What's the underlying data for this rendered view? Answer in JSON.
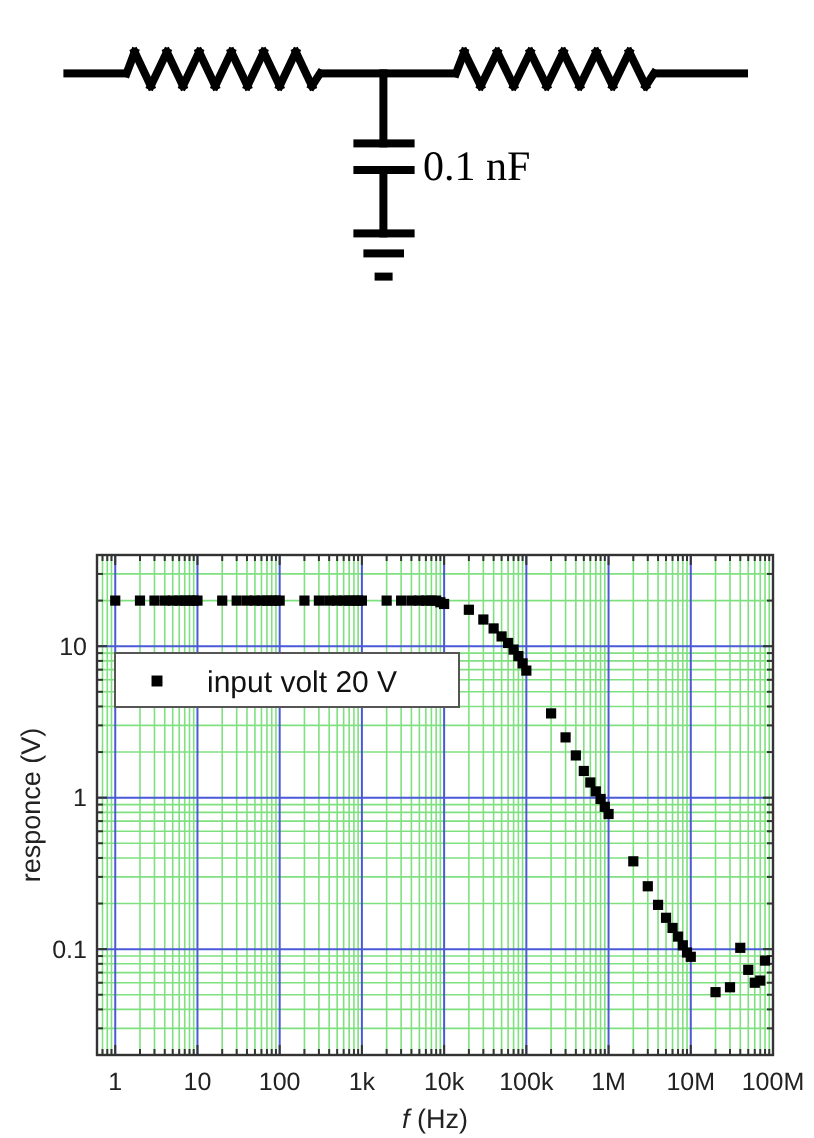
{
  "chart_data": {
    "type": "scatter",
    "xlabel": "f (Hz)",
    "ylabel": "responce (V)",
    "annotations": [
      "0.1 nF"
    ],
    "x": [
      1,
      2,
      3,
      4,
      5,
      6,
      7,
      8,
      9,
      10,
      20,
      30,
      40,
      50,
      60,
      70,
      80,
      90,
      100,
      200,
      300,
      400,
      500,
      600,
      700,
      800,
      900,
      1000,
      2000,
      3000,
      4000,
      5000,
      6000,
      7000,
      8000,
      9000,
      10000,
      20000,
      30000,
      40000,
      50000,
      60000,
      70000,
      80000,
      90000,
      100000,
      200000,
      300000,
      400000,
      500000,
      600000,
      700000,
      800000,
      900000,
      1000000,
      2000000,
      3000000,
      4000000,
      5000000,
      6000000,
      7000000,
      8000000,
      9000000,
      10000000,
      20000000,
      30000000,
      40000000,
      50000000,
      60000000,
      70000000,
      80000000
    ],
    "series": [
      {
        "name": "input volt 20 V",
        "color": "#000000",
        "values": [
          20,
          20,
          20,
          20,
          20,
          20,
          20,
          20,
          20,
          20,
          20,
          20,
          20,
          20,
          20,
          20,
          20,
          20,
          20,
          20,
          20,
          20,
          20,
          20,
          20,
          20,
          20,
          20,
          20,
          20,
          20,
          20,
          20,
          20,
          20,
          19.5,
          19,
          17.4,
          15,
          13.1,
          11.6,
          10.5,
          9.5,
          8.6,
          7.7,
          6.9,
          3.6,
          2.5,
          1.9,
          1.5,
          1.26,
          1.1,
          0.98,
          0.87,
          0.78,
          0.38,
          0.26,
          0.196,
          0.161,
          0.138,
          0.121,
          0.106,
          0.095,
          0.089,
          0.052,
          0.056,
          0.102,
          0.073,
          0.06,
          0.062,
          0.084
        ]
      }
    ],
    "xlim": [
      0.6,
      100000000
    ],
    "ylim": [
      0.02,
      40
    ],
    "xticks": [
      {
        "value": 0.7,
        "label": null
      },
      {
        "value": 0.8,
        "label": null
      },
      {
        "value": 0.9,
        "label": null
      },
      1,
      {
        "value": 2,
        "label": null
      },
      {
        "value": 3,
        "label": null
      },
      {
        "value": 4,
        "label": null
      },
      {
        "value": 5,
        "label": null
      },
      {
        "value": 6,
        "label": null
      },
      {
        "value": 7,
        "label": null
      },
      {
        "value": 8,
        "label": null
      },
      {
        "value": 9,
        "label": null
      },
      10,
      {
        "value": 20,
        "label": null
      },
      {
        "value": 30,
        "label": null
      },
      {
        "value": 40,
        "label": null
      },
      {
        "value": 50,
        "label": null
      },
      {
        "value": 60,
        "label": null
      },
      {
        "value": 70,
        "label": null
      },
      {
        "value": 80,
        "label": null
      },
      {
        "value": 90,
        "label": null
      },
      100,
      {
        "value": 200,
        "label": null
      },
      {
        "value": 300,
        "label": null
      },
      {
        "value": 400,
        "label": null
      },
      {
        "value": 500,
        "label": null
      },
      {
        "value": 600,
        "label": null
      },
      {
        "value": 700,
        "label": null
      },
      {
        "value": 800,
        "label": null
      },
      {
        "value": 900,
        "label": null
      },
      {
        "value": 1000,
        "label": "1k"
      },
      {
        "value": 2000,
        "label": null
      },
      {
        "value": 3000,
        "label": null
      },
      {
        "value": 4000,
        "label": null
      },
      {
        "value": 5000,
        "label": null
      },
      {
        "value": 6000,
        "label": null
      },
      {
        "value": 7000,
        "label": null
      },
      {
        "value": 8000,
        "label": null
      },
      {
        "value": 9000,
        "label": null
      },
      {
        "value": 10000,
        "label": "10k"
      },
      {
        "value": 20000,
        "label": null
      },
      {
        "value": 30000,
        "label": null
      },
      {
        "value": 40000,
        "label": null
      },
      {
        "value": 50000,
        "label": null
      },
      {
        "value": 60000,
        "label": null
      },
      {
        "value": 70000,
        "label": null
      },
      {
        "value": 80000,
        "label": null
      },
      {
        "value": 90000,
        "label": null
      },
      {
        "value": 100000,
        "label": "100k"
      },
      {
        "value": 200000,
        "label": null
      },
      {
        "value": 300000,
        "label": null
      },
      {
        "value": 400000,
        "label": null
      },
      {
        "value": 500000,
        "label": null
      },
      {
        "value": 600000,
        "label": null
      },
      {
        "value": 700000,
        "label": null
      },
      {
        "value": 800000,
        "label": null
      },
      {
        "value": 900000,
        "label": null
      },
      {
        "value": 1000000,
        "label": "1M"
      },
      {
        "value": 2000000,
        "label": null
      },
      {
        "value": 3000000,
        "label": null
      },
      {
        "value": 4000000,
        "label": null
      },
      {
        "value": 5000000,
        "label": null
      },
      {
        "value": 6000000,
        "label": null
      },
      {
        "value": 7000000,
        "label": null
      },
      {
        "value": 8000000,
        "label": null
      },
      {
        "value": 9000000,
        "label": null
      },
      {
        "value": 10000000,
        "label": "10M"
      },
      {
        "value": 20000000,
        "label": null
      },
      {
        "value": 30000000,
        "label": null
      },
      {
        "value": 40000000,
        "label": null
      },
      {
        "value": 50000000,
        "label": null
      },
      {
        "value": 60000000,
        "label": null
      },
      {
        "value": 70000000,
        "label": null
      },
      {
        "value": 80000000,
        "label": null
      },
      {
        "value": 90000000,
        "label": null
      },
      {
        "value": 100000000,
        "label": "100M"
      }
    ],
    "yticks": [
      {
        "value": 0.02,
        "label": null
      },
      {
        "value": 0.03,
        "label": null
      },
      {
        "value": 0.04,
        "label": null
      },
      {
        "value": 0.05,
        "label": null
      },
      {
        "value": 0.06,
        "label": null
      },
      {
        "value": 0.07,
        "label": null
      },
      {
        "value": 0.08,
        "label": null
      },
      {
        "value": 0.09,
        "label": null
      },
      0.1,
      {
        "value": 0.2,
        "label": null
      },
      {
        "value": 0.3,
        "label": null
      },
      {
        "value": 0.4,
        "label": null
      },
      {
        "value": 0.5,
        "label": null
      },
      {
        "value": 0.6,
        "label": null
      },
      {
        "value": 0.7,
        "label": null
      },
      {
        "value": 0.8,
        "label": null
      },
      {
        "value": 0.9,
        "label": null
      },
      1,
      {
        "value": 2,
        "label": null
      },
      {
        "value": 3,
        "label": null
      },
      {
        "value": 4,
        "label": null
      },
      {
        "value": 5,
        "label": null
      },
      {
        "value": 6,
        "label": null
      },
      {
        "value": 7,
        "label": null
      },
      {
        "value": 8,
        "label": null
      },
      {
        "value": 9,
        "label": null
      },
      10,
      {
        "value": 20,
        "label": null
      },
      {
        "value": 30,
        "label": null
      },
      {
        "value": 40,
        "label": null
      }
    ],
    "log": "xy",
    "grid": true,
    "legend": "top left",
    "marker": "square"
  }
}
